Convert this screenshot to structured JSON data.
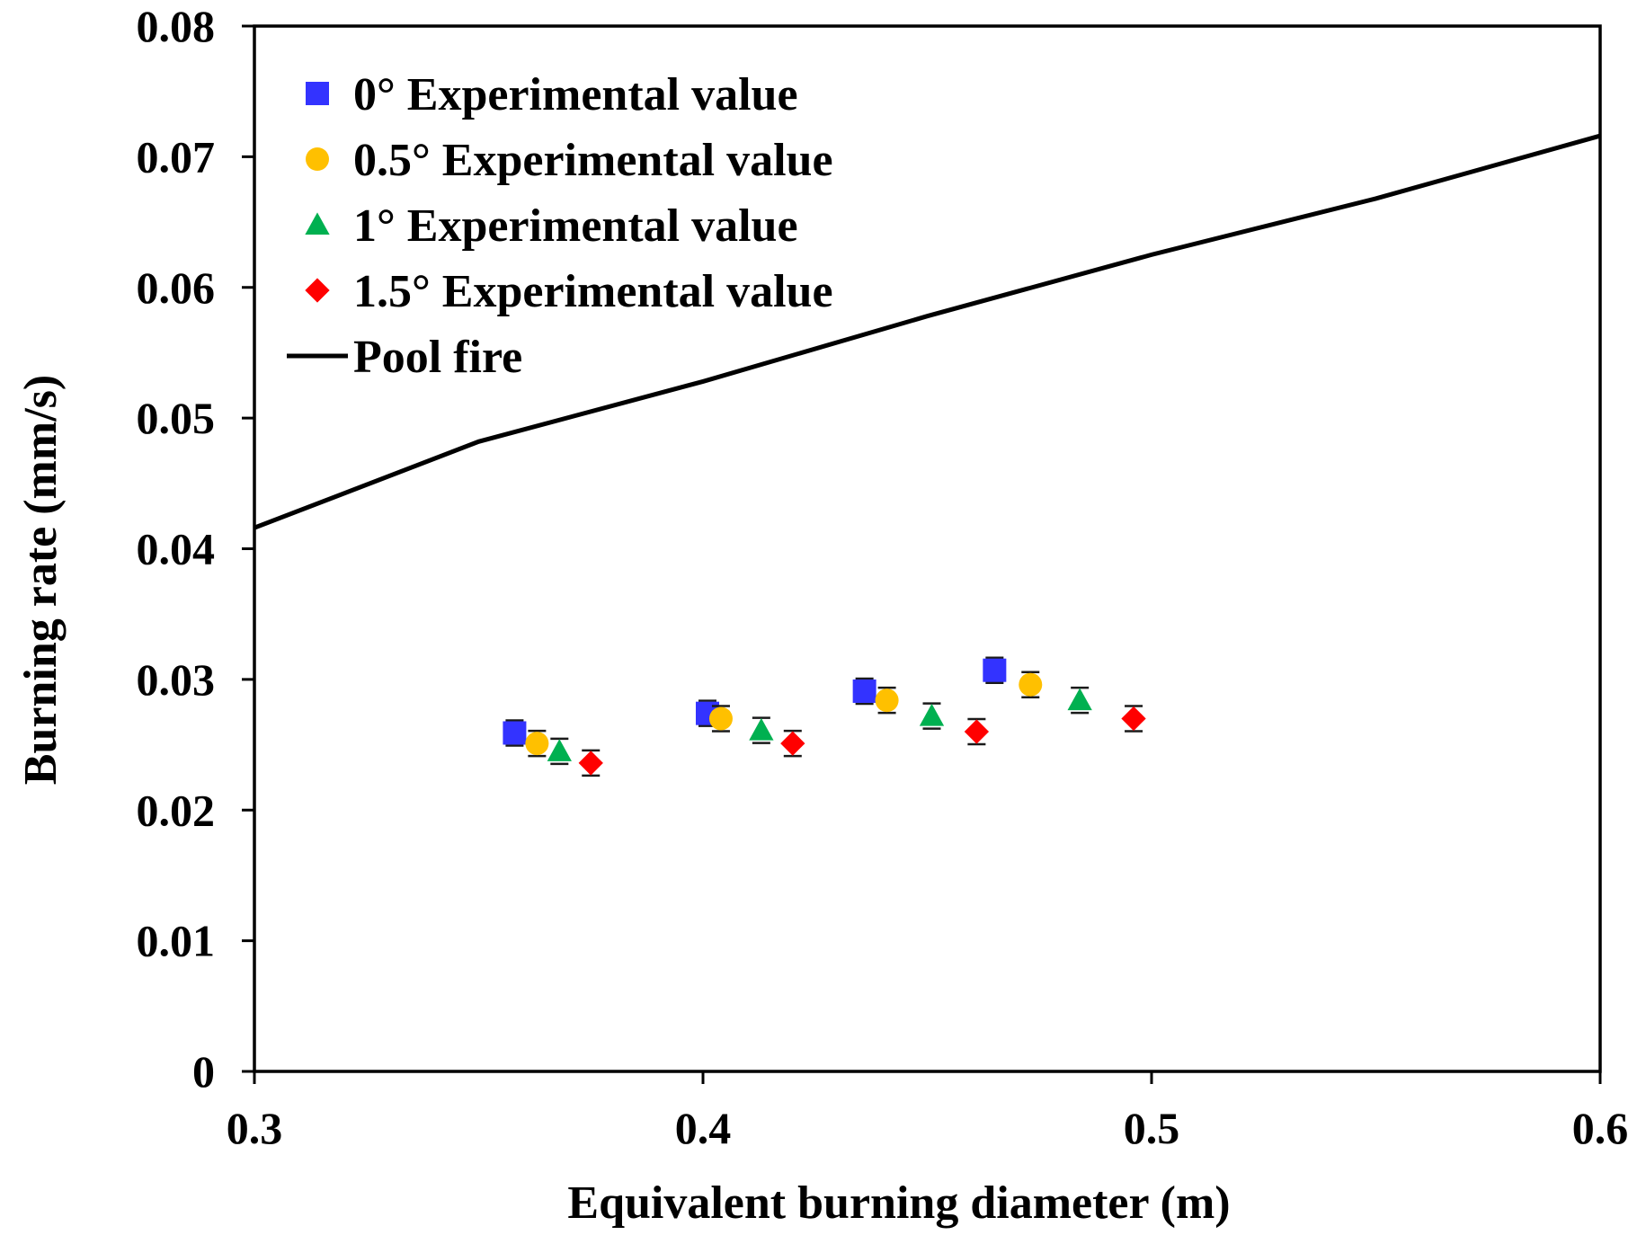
{
  "chart_data": {
    "type": "scatter",
    "title": "",
    "xlabel": "Equivalent burning diameter (m)",
    "ylabel": "Burning rate (mm/s)",
    "xlim": [
      0.3,
      0.6
    ],
    "ylim": [
      0,
      0.08
    ],
    "xticks": [
      "0.3",
      "0.4",
      "0.5",
      "0.6"
    ],
    "yticks": [
      "0",
      "0.01",
      "0.02",
      "0.03",
      "0.04",
      "0.05",
      "0.06",
      "0.07",
      "0.08"
    ],
    "grid": false,
    "legend_position": "top-left",
    "series": [
      {
        "name": "0° Experimental value",
        "marker": "square",
        "color": "#3333FF",
        "points": [
          [
            0.358,
            0.0259
          ],
          [
            0.401,
            0.0274
          ],
          [
            0.436,
            0.0291
          ],
          [
            0.465,
            0.0307
          ]
        ]
      },
      {
        "name": "0.5° Experimental value",
        "marker": "circle",
        "color": "#FFC000",
        "points": [
          [
            0.363,
            0.0251
          ],
          [
            0.404,
            0.027
          ],
          [
            0.441,
            0.0284
          ],
          [
            0.473,
            0.0296
          ]
        ]
      },
      {
        "name": "1° Experimental value",
        "marker": "triangle",
        "color": "#00B050",
        "points": [
          [
            0.368,
            0.0245
          ],
          [
            0.413,
            0.0261
          ],
          [
            0.451,
            0.0272
          ],
          [
            0.484,
            0.0284
          ]
        ]
      },
      {
        "name": "1.5° Experimental value",
        "marker": "diamond",
        "color": "#FF0000",
        "points": [
          [
            0.375,
            0.0236
          ],
          [
            0.42,
            0.0251
          ],
          [
            0.461,
            0.026
          ],
          [
            0.496,
            0.027
          ]
        ]
      },
      {
        "name": "Pool fire",
        "marker": "line",
        "color": "#000000",
        "points": [
          [
            0.3,
            0.0416
          ],
          [
            0.35,
            0.0482
          ],
          [
            0.4,
            0.0528
          ],
          [
            0.45,
            0.0578
          ],
          [
            0.5,
            0.0625
          ],
          [
            0.55,
            0.0668
          ],
          [
            0.6,
            0.0716
          ]
        ]
      }
    ]
  }
}
